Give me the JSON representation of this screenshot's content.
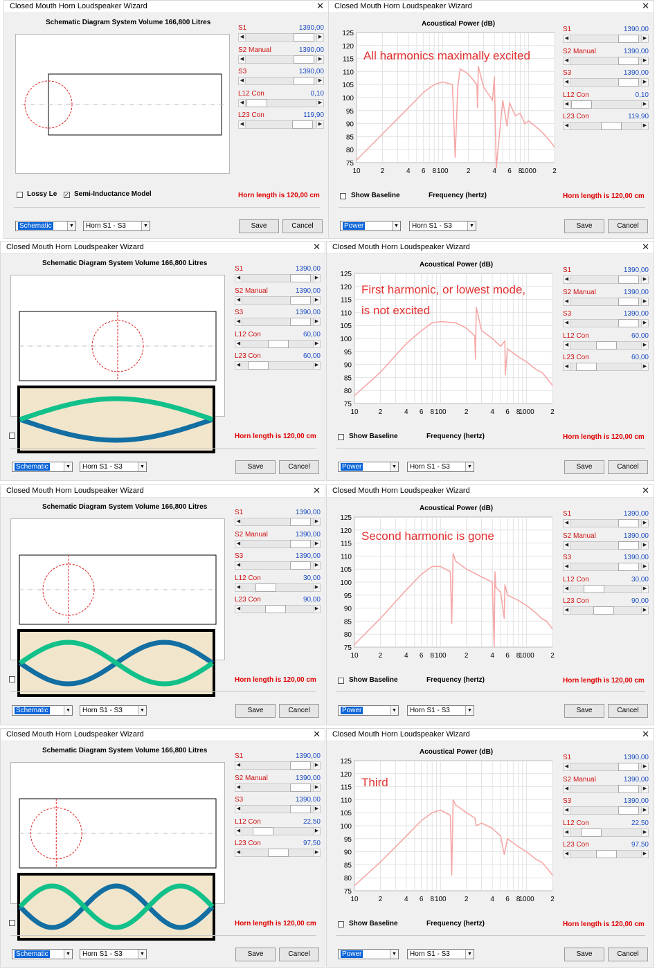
{
  "colors": {
    "curve": "#f6a8a8",
    "value_blue": "#1c4ec2",
    "label_red": "#d01010",
    "horn_red": "#e00000",
    "annotation": "#e53030",
    "wave_green": "#12c08a",
    "wave_blue": "#136ea2",
    "wave_bg": "#f1e6cc"
  },
  "rows": [
    {
      "schematic": {
        "title": "Closed Mouth Horn Loudspeaker Wizard",
        "heading": "Schematic Diagram   System Volume 166,800 Litres",
        "sliders": [
          {
            "label": "S1",
            "value": "1390,00",
            "level": 0.95
          },
          {
            "label": "S2 Manual",
            "value": "1390,00",
            "level": 0.95
          },
          {
            "label": "S3",
            "value": "1390,00",
            "level": 0.95
          },
          {
            "label": "L12 Con",
            "value": "0,10",
            "level": 0.0
          },
          {
            "label": "L23 Con",
            "value": "119,90",
            "level": 0.92
          }
        ],
        "lossy_label": "Lossy Le",
        "semi_label": "Semi-Inductance Model",
        "horn_length": "Horn length is 120,00 cm",
        "view_select": "Schematic",
        "horn_select": "Horn S1 - S3",
        "save": "Save",
        "cancel": "Cancel",
        "modes": 0,
        "driver_pos": 0.0
      },
      "graph": {
        "title": "Closed Mouth Horn Loudspeaker Wizard",
        "heading": "Acoustical Power (dB)",
        "annotation": "All harmonics maximally excited",
        "sliders": [
          {
            "label": "S1",
            "value": "1390,00",
            "level": 0.95
          },
          {
            "label": "S2 Manual",
            "value": "1390,00",
            "level": 0.95
          },
          {
            "label": "S3",
            "value": "1390,00",
            "level": 0.95
          },
          {
            "label": "L12 Con",
            "value": "0,10",
            "level": 0.0
          },
          {
            "label": "L23 Con",
            "value": "119,90",
            "level": 0.6
          }
        ],
        "show_baseline": "Show Baseline",
        "x_axis_label": "Frequency (hertz)",
        "horn_length": "Horn length is 120,00 cm",
        "view_select": "Power",
        "horn_select": "Horn S1 - S3",
        "save": "Save",
        "cancel": "Cancel"
      }
    },
    {
      "schematic": {
        "title": "Closed Mouth Horn Loudspeaker Wizard",
        "heading": "Schematic Diagram   System Volume 166,800 Litres",
        "sliders": [
          {
            "label": "S1",
            "value": "1390,00",
            "level": 0.95
          },
          {
            "label": "S2 Manual",
            "value": "1390,00",
            "level": 0.95
          },
          {
            "label": "S3",
            "value": "1390,00",
            "level": 0.95
          },
          {
            "label": "L12 Con",
            "value": "60,00",
            "level": 0.5
          },
          {
            "label": "L23 Con",
            "value": "60,00",
            "level": 0.1
          }
        ],
        "horn_length": "Horn length is 120,00 cm",
        "view_select": "Schematic",
        "horn_select": "Horn S1 - S3",
        "save": "Save",
        "cancel": "Cancel",
        "modes": 1,
        "driver_pos": 0.5
      },
      "graph": {
        "title": "Closed Mouth Horn Loudspeaker Wizard",
        "heading": "Acoustical Power (dB)",
        "annotation": "First harmonic, or lowest mode,",
        "annotation2": "is not excited",
        "sliders": [
          {
            "label": "S1",
            "value": "1390,00",
            "level": 0.95
          },
          {
            "label": "S2 Manual",
            "value": "1390,00",
            "level": 0.95
          },
          {
            "label": "S3",
            "value": "1390,00",
            "level": 0.95
          },
          {
            "label": "L12 Con",
            "value": "60,00",
            "level": 0.5
          },
          {
            "label": "L23 Con",
            "value": "60,00",
            "level": 0.1
          }
        ],
        "show_baseline": "Show Baseline",
        "x_axis_label": "Frequency (hertz)",
        "horn_length": "Horn length is 120,00 cm",
        "view_select": "Power",
        "horn_select": "Horn S1 - S3",
        "save": "Save",
        "cancel": "Cancel"
      }
    },
    {
      "schematic": {
        "title": "Closed Mouth Horn Loudspeaker Wizard",
        "heading": "Schematic Diagram   System Volume 166,800 Litres",
        "sliders": [
          {
            "label": "S1",
            "value": "1390,00",
            "level": 0.95
          },
          {
            "label": "S2 Manual",
            "value": "1390,00",
            "level": 0.95
          },
          {
            "label": "S3",
            "value": "1390,00",
            "level": 0.95
          },
          {
            "label": "L12 Con",
            "value": "30,00",
            "level": 0.25
          },
          {
            "label": "L23 Con",
            "value": "90,00",
            "level": 0.45
          }
        ],
        "horn_length": "Horn length is 120,00 cm",
        "view_select": "Schematic",
        "horn_select": "Horn S1 - S3",
        "save": "Save",
        "cancel": "Cancel",
        "modes": 2,
        "driver_pos": 0.25
      },
      "graph": {
        "title": "Closed Mouth Horn Loudspeaker Wizard",
        "heading": "Acoustical Power (dB)",
        "annotation": "Second harmonic is gone",
        "sliders": [
          {
            "label": "S1",
            "value": "1390,00",
            "level": 0.95
          },
          {
            "label": "S2 Manual",
            "value": "1390,00",
            "level": 0.95
          },
          {
            "label": "S3",
            "value": "1390,00",
            "level": 0.95
          },
          {
            "label": "L12 Con",
            "value": "30,00",
            "level": 0.25
          },
          {
            "label": "L23 Con",
            "value": "90,00",
            "level": 0.45
          }
        ],
        "show_baseline": "Show Baseline",
        "x_axis_label": "Frequency (hertz)",
        "horn_length": "Horn length is 120,00 cm",
        "view_select": "Power",
        "horn_select": "Horn S1 - S3",
        "save": "Save",
        "cancel": "Cancel"
      }
    },
    {
      "schematic": {
        "title": "Closed Mouth Horn Loudspeaker Wizard",
        "heading": "Schematic Diagram   System Volume 166,800 Litres",
        "sliders": [
          {
            "label": "S1",
            "value": "1390,00",
            "level": 0.95
          },
          {
            "label": "S2 Manual",
            "value": "1390,00",
            "level": 0.95
          },
          {
            "label": "S3",
            "value": "1390,00",
            "level": 0.95
          },
          {
            "label": "L12 Con",
            "value": "22,50",
            "level": 0.19
          },
          {
            "label": "L23 Con",
            "value": "97,50",
            "level": 0.5
          }
        ],
        "horn_length": "Horn length is 120,00 cm",
        "view_select": "Schematic",
        "horn_select": "Horn S1 - S3",
        "save": "Save",
        "cancel": "Cancel",
        "modes": 3,
        "driver_pos": 0.1875
      },
      "graph": {
        "title": "Closed Mouth Horn Loudspeaker Wizard",
        "heading": "Acoustical Power (dB)",
        "annotation": "Third",
        "sliders": [
          {
            "label": "S1",
            "value": "1390,00",
            "level": 0.95
          },
          {
            "label": "S2 Manual",
            "value": "1390,00",
            "level": 0.95
          },
          {
            "label": "S3",
            "value": "1390,00",
            "level": 0.95
          },
          {
            "label": "L12 Con",
            "value": "22,50",
            "level": 0.19
          },
          {
            "label": "L23 Con",
            "value": "97,50",
            "level": 0.5
          }
        ],
        "show_baseline": "Show Baseline",
        "x_axis_label": "Frequency (hertz)",
        "horn_length": "Horn length is 120,00 cm",
        "view_select": "Power",
        "horn_select": "Horn S1 - S3",
        "save": "Save",
        "cancel": "Cancel"
      }
    }
  ],
  "chart_data": [
    {
      "type": "line",
      "title": "Acoustical Power (dB)",
      "xlabel": "Frequency (hertz)",
      "ylabel": "",
      "x_scale": "log",
      "xlim": [
        10,
        2000
      ],
      "ylim": [
        75,
        125
      ],
      "y_ticks": [
        "125",
        "120",
        "115",
        "110",
        "105",
        "100",
        "95",
        "90",
        "85",
        "80",
        "75"
      ],
      "x_ticks": [
        "10",
        "2",
        "4",
        "6",
        "8",
        "100",
        "2",
        "4",
        "6",
        "8",
        "1000",
        "2"
      ],
      "x": [
        10,
        20,
        40,
        60,
        80,
        100,
        130,
        140,
        150,
        160,
        180,
        200,
        250,
        255,
        260,
        300,
        380,
        400,
        420,
        500,
        560,
        600,
        700,
        800,
        900,
        1000,
        1300,
        1500,
        1700,
        2000
      ],
      "y": [
        76,
        86,
        96,
        102,
        105,
        106,
        105,
        77,
        104,
        111,
        110,
        109,
        105,
        96,
        112,
        104,
        99,
        108,
        73,
        99,
        89,
        98,
        93,
        94,
        90,
        91,
        88,
        86,
        84,
        81
      ]
    },
    {
      "type": "line",
      "title": "Acoustical Power (dB)",
      "xlabel": "Frequency (hertz)",
      "ylabel": "",
      "x_scale": "log",
      "xlim": [
        10,
        2000
      ],
      "ylim": [
        75,
        125
      ],
      "x": [
        10,
        20,
        40,
        60,
        80,
        100,
        150,
        200,
        250,
        255,
        260,
        300,
        400,
        500,
        560,
        565,
        600,
        800,
        1000,
        1300,
        1500,
        1700,
        2000
      ],
      "y": [
        78,
        87,
        98,
        103,
        106,
        106.5,
        106,
        104,
        101,
        92,
        112,
        103,
        100,
        97,
        99,
        86,
        96,
        93,
        91,
        88,
        87,
        85,
        82
      ]
    },
    {
      "type": "line",
      "title": "Acoustical Power (dB)",
      "xlabel": "Frequency (hertz)",
      "ylabel": "",
      "x_scale": "log",
      "xlim": [
        10,
        2000
      ],
      "ylim": [
        75,
        125
      ],
      "x": [
        10,
        20,
        40,
        60,
        80,
        100,
        130,
        135,
        140,
        150,
        200,
        300,
        400,
        420,
        430,
        440,
        500,
        550,
        560,
        600,
        800,
        1000,
        1300,
        1500,
        1700,
        2000
      ],
      "y": [
        76,
        86,
        97,
        103,
        106,
        106,
        104,
        84,
        111,
        108,
        105,
        102,
        100,
        75,
        104,
        98,
        96,
        86,
        99,
        95,
        93,
        91,
        88,
        86,
        85,
        82
      ]
    },
    {
      "type": "line",
      "title": "Acoustical Power (dB)",
      "xlabel": "Frequency (hertz)",
      "ylabel": "",
      "x_scale": "log",
      "xlim": [
        10,
        2000
      ],
      "ylim": [
        75,
        125
      ],
      "x": [
        10,
        20,
        40,
        60,
        80,
        100,
        130,
        135,
        140,
        150,
        200,
        250,
        260,
        300,
        400,
        500,
        550,
        600,
        800,
        1000,
        1300,
        1500,
        1700,
        2000
      ],
      "y": [
        77,
        86,
        96,
        102,
        105,
        106,
        104,
        81,
        110,
        108,
        105,
        103,
        100,
        101,
        99,
        96,
        89,
        95,
        92,
        90,
        87,
        86,
        84,
        81
      ]
    }
  ]
}
